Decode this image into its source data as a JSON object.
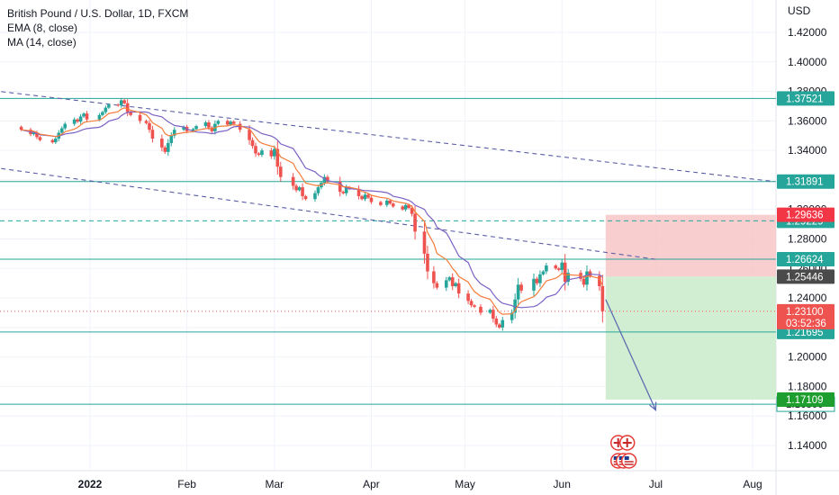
{
  "legend": {
    "title": "British Pound / U.S. Dollar, 1D, FXCM",
    "ema": "EMA (8, close)",
    "ma": "MA (14, close)"
  },
  "chart_data": {
    "type": "candlestick",
    "currency": "USD",
    "ylim": [
      1.128,
      1.44
    ],
    "y_ticks": [
      "1.42000",
      "1.40000",
      "1.38000",
      "1.36000",
      "1.34000",
      "1.32000",
      "1.30000",
      "1.28000",
      "1.26000",
      "1.24000",
      "1.22000",
      "1.20000",
      "1.18000",
      "1.16000",
      "1.14000"
    ],
    "x_ticks": [
      {
        "label": "2022",
        "bold": true,
        "date": "2022-01-01"
      },
      {
        "label": "Feb",
        "date": "2022-02-01"
      },
      {
        "label": "Mar",
        "date": "2022-03-01"
      },
      {
        "label": "Apr",
        "date": "2022-04-01"
      },
      {
        "label": "May",
        "date": "2022-05-01"
      },
      {
        "label": "Jun",
        "date": "2022-06-01"
      },
      {
        "label": "Jul",
        "date": "2022-07-01"
      },
      {
        "label": "Aug",
        "date": "2022-08-01"
      }
    ],
    "closes": [
      1.354,
      1.351,
      1.352,
      1.349,
      1.347,
      1.3455,
      1.348,
      1.352,
      1.355,
      1.358,
      1.361,
      1.3595,
      1.363,
      1.365,
      1.361,
      1.364,
      1.366,
      1.369,
      1.371,
      1.3705,
      1.374,
      1.372,
      1.366,
      1.364,
      1.36,
      1.3585,
      1.354,
      1.348,
      1.342,
      1.339,
      1.345,
      1.35,
      1.354,
      1.356,
      1.353,
      1.3545,
      1.3565,
      1.359,
      1.3555,
      1.353,
      1.358,
      1.36,
      1.3575,
      1.3595,
      1.358,
      1.354,
      1.347,
      1.343,
      1.338,
      1.337,
      1.34,
      1.336,
      1.341,
      1.329,
      1.322,
      1.316,
      1.313,
      1.315,
      1.309,
      1.307,
      1.311,
      1.315,
      1.318,
      1.322,
      1.319,
      1.312,
      1.311,
      1.315,
      1.314,
      1.309,
      1.307,
      1.31,
      1.308,
      1.305,
      1.303,
      1.306,
      1.304,
      1.302,
      1.3,
      1.303,
      1.301,
      1.297,
      1.285,
      1.27,
      1.258,
      1.25,
      1.247,
      1.252,
      1.254,
      1.248,
      1.25,
      1.243,
      1.238,
      1.235,
      1.234,
      1.23,
      1.232,
      1.226,
      1.222,
      1.22,
      1.225,
      1.23,
      1.239,
      1.249,
      1.245,
      1.253,
      1.25,
      1.256,
      1.258,
      1.262,
      1.26,
      1.259,
      1.264,
      1.251,
      1.257,
      1.253,
      1.249,
      1.258,
      1.255,
      1.248,
      1.231
    ],
    "date_range": [
      "2021-12-10",
      "2022-06-14"
    ],
    "ema8": "EMA (8, close)",
    "ma14": "MA (14, close)",
    "trendlines": [
      {
        "from": [
          "2021-12-01",
          1.3805
        ],
        "to": [
          "2022-08-08",
          1.3189
        ],
        "style": "dashed",
        "color": "#5b5ea6"
      },
      {
        "from": [
          "2021-12-01",
          1.3285
        ],
        "to": [
          "2022-07-01",
          1.2662
        ],
        "style": "dashed",
        "color": "#5b5ea6"
      }
    ],
    "horizontal_levels": [
      {
        "value": 1.37521,
        "label": "1.37521",
        "style": "solid"
      },
      {
        "value": 1.31891,
        "label": "1.31891",
        "style": "solid"
      },
      {
        "value": 1.29229,
        "label": "1.29229",
        "style": "dashed"
      },
      {
        "value": 1.26624,
        "label": "1.26624",
        "style": "solid"
      },
      {
        "value": 1.21695,
        "label": "1.21695",
        "style": "solid"
      },
      {
        "value": 1.168,
        "label": "1.16800",
        "style": "solid"
      }
    ],
    "short_position": {
      "start_date": "2022-06-15",
      "end_date": "2022-08-31",
      "entry": 1.25446,
      "entry_label": "1.25446",
      "stop": 1.29636,
      "stop_label": "1.29636",
      "target": 1.17109,
      "target_label": "1.17109"
    },
    "current_price": {
      "value": 1.231,
      "label": "1.23100",
      "countdown": "03:52:36"
    },
    "projection_arrow": {
      "from": [
        "2022-06-15",
        1.239
      ],
      "to": [
        "2022-07-01",
        1.164
      ]
    },
    "colors": {
      "up": "#26a69a",
      "down": "#ef5350",
      "ema": "#f57c3a",
      "ma": "#7b61c4",
      "level": "#26a69a",
      "trend": "#5b5ea6",
      "stop_zone": "#f7c6c6",
      "target_zone": "#cdeccd",
      "entry_tag": "#4a4a4a",
      "stop_tag": "#f23645",
      "target_tag": "#1e9e2e",
      "price_tag": "#ef5350"
    }
  }
}
